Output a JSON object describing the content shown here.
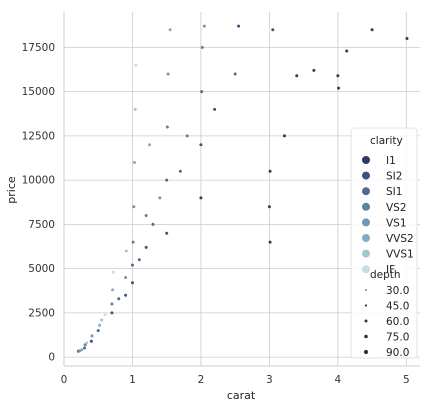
{
  "chart_data": {
    "type": "scatter",
    "title": "",
    "xlabel": "carat",
    "ylabel": "price",
    "xlim": [
      0,
      5.2
    ],
    "ylim": [
      -500,
      19500
    ],
    "xticks": [
      0,
      1,
      2,
      3,
      4,
      5
    ],
    "yticks": [
      0,
      2500,
      5000,
      7500,
      10000,
      12500,
      15000,
      17500
    ],
    "grid": true,
    "legend_position": "right",
    "hue": {
      "title": "clarity",
      "levels": [
        {
          "name": "I1",
          "color": "#2c3a64"
        },
        {
          "name": "SI2",
          "color": "#3f5183"
        },
        {
          "name": "SI1",
          "color": "#4e6a94"
        },
        {
          "name": "VS2",
          "color": "#5d82a3"
        },
        {
          "name": "VS1",
          "color": "#6f98b2"
        },
        {
          "name": "VVS2",
          "color": "#85adc0"
        },
        {
          "name": "VVS1",
          "color": "#a3c6d2"
        },
        {
          "name": "IF",
          "color": "#c6dee4"
        }
      ]
    },
    "size": {
      "title": "depth",
      "levels": [
        30.0,
        45.0,
        60.0,
        75.0,
        90.0
      ],
      "labels": [
        "30.0",
        "45.0",
        "60.0",
        "75.0",
        "90.0"
      ]
    },
    "points": [
      {
        "x": 0.21,
        "y": 330,
        "clarity": "SI1"
      },
      {
        "x": 0.23,
        "y": 360,
        "clarity": "VS1"
      },
      {
        "x": 0.26,
        "y": 420,
        "clarity": "VVS2"
      },
      {
        "x": 0.3,
        "y": 520,
        "clarity": "SI1"
      },
      {
        "x": 0.31,
        "y": 700,
        "clarity": "VS2"
      },
      {
        "x": 0.33,
        "y": 800,
        "clarity": "VVS1"
      },
      {
        "x": 0.4,
        "y": 900,
        "clarity": "SI2"
      },
      {
        "x": 0.41,
        "y": 1200,
        "clarity": "VS1"
      },
      {
        "x": 0.5,
        "y": 1500,
        "clarity": "SI1"
      },
      {
        "x": 0.52,
        "y": 1800,
        "clarity": "VVS2"
      },
      {
        "x": 0.55,
        "y": 2100,
        "clarity": "VVS1"
      },
      {
        "x": 0.6,
        "y": 2400,
        "clarity": "IF"
      },
      {
        "x": 0.7,
        "y": 2500,
        "clarity": "SI2"
      },
      {
        "x": 0.7,
        "y": 3000,
        "clarity": "VS2"
      },
      {
        "x": 0.71,
        "y": 3800,
        "clarity": "VVS2"
      },
      {
        "x": 0.72,
        "y": 4800,
        "clarity": "IF"
      },
      {
        "x": 0.8,
        "y": 3300,
        "clarity": "SI1"
      },
      {
        "x": 0.9,
        "y": 3500,
        "clarity": "SI2"
      },
      {
        "x": 0.9,
        "y": 4500,
        "clarity": "VS1"
      },
      {
        "x": 0.91,
        "y": 6000,
        "clarity": "VVS1"
      },
      {
        "x": 1.0,
        "y": 4200,
        "clarity": "SI2"
      },
      {
        "x": 1.0,
        "y": 5200,
        "clarity": "SI1"
      },
      {
        "x": 1.01,
        "y": 6500,
        "clarity": "VS2"
      },
      {
        "x": 1.02,
        "y": 8500,
        "clarity": "VS1"
      },
      {
        "x": 1.03,
        "y": 11000,
        "clarity": "VVS2"
      },
      {
        "x": 1.04,
        "y": 14000,
        "clarity": "VVS1"
      },
      {
        "x": 1.05,
        "y": 16500,
        "clarity": "IF"
      },
      {
        "x": 1.1,
        "y": 5500,
        "clarity": "SI1"
      },
      {
        "x": 1.2,
        "y": 6200,
        "clarity": "SI2"
      },
      {
        "x": 1.2,
        "y": 8000,
        "clarity": "VS2"
      },
      {
        "x": 1.25,
        "y": 12000,
        "clarity": "VVS2"
      },
      {
        "x": 1.3,
        "y": 7500,
        "clarity": "SI1"
      },
      {
        "x": 1.4,
        "y": 9000,
        "clarity": "VS1"
      },
      {
        "x": 1.5,
        "y": 7000,
        "clarity": "SI2"
      },
      {
        "x": 1.5,
        "y": 10000,
        "clarity": "SI1"
      },
      {
        "x": 1.51,
        "y": 13000,
        "clarity": "VS2"
      },
      {
        "x": 1.52,
        "y": 16000,
        "clarity": "VS1"
      },
      {
        "x": 1.55,
        "y": 18500,
        "clarity": "VVS2"
      },
      {
        "x": 1.7,
        "y": 10500,
        "clarity": "SI1"
      },
      {
        "x": 1.8,
        "y": 12500,
        "clarity": "VS2"
      },
      {
        "x": 2.0,
        "y": 9000,
        "clarity": "I1"
      },
      {
        "x": 2.0,
        "y": 12000,
        "clarity": "SI2"
      },
      {
        "x": 2.01,
        "y": 15000,
        "clarity": "SI1"
      },
      {
        "x": 2.02,
        "y": 17500,
        "clarity": "VS2"
      },
      {
        "x": 2.05,
        "y": 18700,
        "clarity": "VS1"
      },
      {
        "x": 2.2,
        "y": 14000,
        "clarity": "SI2"
      },
      {
        "x": 2.5,
        "y": 16000,
        "clarity": "SI1"
      },
      {
        "x": 2.55,
        "y": 18700,
        "clarity": "SI2"
      },
      {
        "x": 3.0,
        "y": 8500,
        "clarity": "I1"
      },
      {
        "x": 3.01,
        "y": 10500,
        "clarity": "I1"
      },
      {
        "x": 3.01,
        "y": 6500,
        "clarity": "I1"
      },
      {
        "x": 3.05,
        "y": 18500,
        "clarity": "SI2"
      },
      {
        "x": 3.22,
        "y": 12500,
        "clarity": "I1"
      },
      {
        "x": 3.4,
        "y": 15900,
        "clarity": "I1"
      },
      {
        "x": 3.65,
        "y": 16200,
        "clarity": "I1"
      },
      {
        "x": 4.0,
        "y": 15900,
        "clarity": "I1"
      },
      {
        "x": 4.01,
        "y": 15200,
        "clarity": "I1"
      },
      {
        "x": 4.13,
        "y": 17300,
        "clarity": "I1"
      },
      {
        "x": 4.5,
        "y": 18500,
        "clarity": "I1"
      },
      {
        "x": 5.01,
        "y": 18000,
        "clarity": "I1"
      }
    ]
  }
}
